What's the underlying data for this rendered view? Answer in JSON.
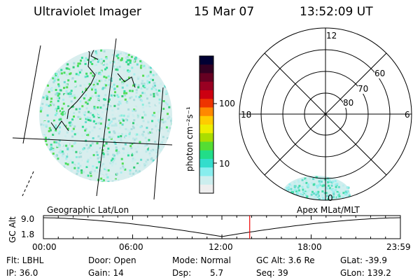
{
  "header": {
    "instrument": "Ultraviolet Imager",
    "date": "15 Mar 07",
    "time": "13:52:09 UT"
  },
  "colorbar": {
    "unit_label": "photon cm⁻²s⁻¹",
    "tick_labels": [
      "100",
      "10"
    ],
    "colors": [
      "#000033",
      "#330022",
      "#660022",
      "#990022",
      "#cc0011",
      "#ee3300",
      "#ff8800",
      "#ffcc00",
      "#eeee00",
      "#aadd00",
      "#55dd33",
      "#22dd88",
      "#33ddcc",
      "#88eeee",
      "#cceeee",
      "#eeeeee"
    ]
  },
  "polar_plot": {
    "mlt_labels": {
      "top": "12",
      "left": "18",
      "right": "6",
      "bottom": "0"
    },
    "lat_labels": [
      "60",
      "70",
      "80"
    ]
  },
  "left_plot": {
    "label": "Geographic Lat/Lon"
  },
  "right_plot": {
    "label": "Apex MLat/MLT"
  },
  "timeline": {
    "ylabel": "GC Alt",
    "y_tick_labels": [
      "9.0",
      "1.8"
    ],
    "x_tick_labels": [
      "00:00",
      "06:00",
      "12:00",
      "18:00",
      "23:59"
    ],
    "current_time_fraction": 0.5779,
    "marker_color": "#ee0000"
  },
  "info": {
    "flt": "Flt: LBHL",
    "door": "Door: Open",
    "mode": "Mode: Normal",
    "gc_alt": "GC Alt: 3.6 Re",
    "glat": "GLat: -39.9",
    "ip": "IP: 36.0",
    "gain": "Gain: 14",
    "dsp_label": "Dsp:",
    "dsp_value": "5.7",
    "seq": "Seq: 39",
    "glon": "GLon: 139.2"
  }
}
